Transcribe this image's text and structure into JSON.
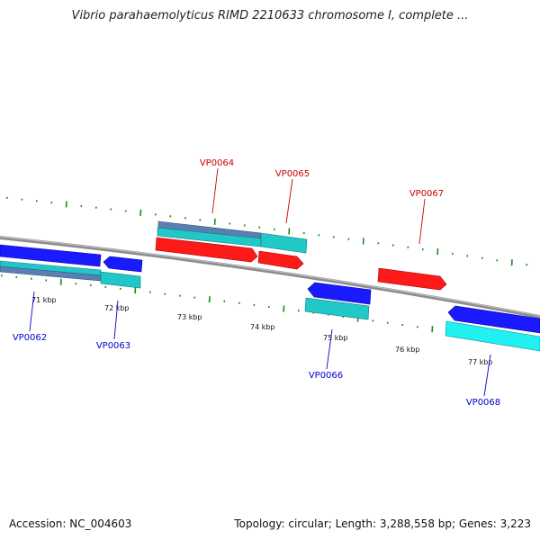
{
  "title": "Vibrio parahaemolyticus RIMD 2210633 chromosome I, complete ...",
  "footer": {
    "accession": "Accession: NC_004603",
    "summary": "Topology: circular; Length: 3,288,558 bp; Genes: 3,223"
  },
  "colors": {
    "backbone": "#8c8c8c",
    "tick": "#1e8a1e",
    "forward_label": "#cc0000",
    "reverse_label": "#0000cc",
    "cds_red": "#ff1a1a",
    "cds_blue": "#1a1aff",
    "gene_cyan": "#20c8c8",
    "gene_steel": "#5a7fb0"
  },
  "scale_labels": [
    "71 kbp",
    "72 kbp",
    "73 kbp",
    "74 kbp",
    "75 kbp",
    "76 kbp",
    "77 kbp"
  ],
  "genes": {
    "forward": [
      "VP0064",
      "VP0065",
      "VP0067"
    ],
    "reverse": [
      "VP0062",
      "VP0063",
      "VP0066",
      "VP0068"
    ]
  }
}
